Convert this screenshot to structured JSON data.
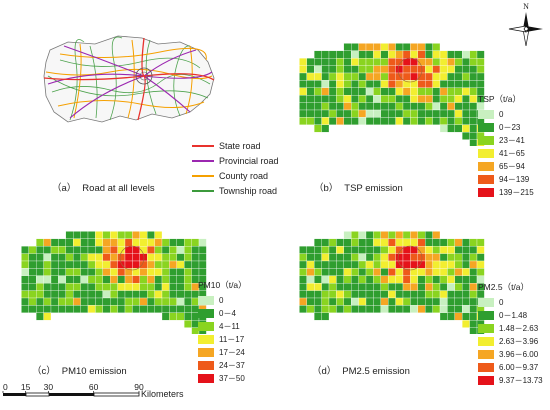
{
  "north_label": "N",
  "road_panel": {
    "caption_label": "（a）",
    "caption_text": "Road at all levels",
    "legend": [
      {
        "label": "State road",
        "color": "#e8322d"
      },
      {
        "label": "Provincial road",
        "color": "#9b27b0"
      },
      {
        "label": "County road",
        "color": "#f5a000"
      },
      {
        "label": "Township road",
        "color": "#3c9a3c"
      }
    ]
  },
  "emission_panels": [
    {
      "id": "tsp",
      "caption_label": "（b）",
      "caption_text": "TSP emission",
      "legend_title": "TSP（t/a）",
      "classes": [
        {
          "label": "0",
          "color": "#c8f0c0"
        },
        {
          "label": "0－23",
          "color": "#2f9e2f"
        },
        {
          "label": "23－41",
          "color": "#8ad420"
        },
        {
          "label": "41－65",
          "color": "#f2ee30"
        },
        {
          "label": "65－94",
          "color": "#f5a623"
        },
        {
          "label": "94－139",
          "color": "#ee5a1a"
        },
        {
          "label": "139－215",
          "color": "#e5121a"
        }
      ]
    },
    {
      "id": "pm10",
      "caption_label": "（c）",
      "caption_text": "PM10 emission",
      "legend_title": "PM10（t/a）",
      "classes": [
        {
          "label": "0",
          "color": "#c8f0c0"
        },
        {
          "label": "0－4",
          "color": "#2f9e2f"
        },
        {
          "label": "4－11",
          "color": "#8ad420"
        },
        {
          "label": "11－17",
          "color": "#f2ee30"
        },
        {
          "label": "17－24",
          "color": "#f5a623"
        },
        {
          "label": "24－37",
          "color": "#ee5a1a"
        },
        {
          "label": "37－50",
          "color": "#e5121a"
        }
      ]
    },
    {
      "id": "pm25",
      "caption_label": "（d）",
      "caption_text": "PM2.5 emission",
      "legend_title": "PM2.5（t/a）",
      "classes": [
        {
          "label": "0",
          "color": "#c8f0c0"
        },
        {
          "label": "0－1.48",
          "color": "#2f9e2f"
        },
        {
          "label": "1.48－2.63",
          "color": "#8ad420"
        },
        {
          "label": "2.63－3.96",
          "color": "#f2ee30"
        },
        {
          "label": "3.96－6.00",
          "color": "#f5a623"
        },
        {
          "label": "6.00－9.37",
          "color": "#ee5a1a"
        },
        {
          "label": "9.37－13.73",
          "color": "#e5121a"
        }
      ]
    }
  ],
  "scale_bar": {
    "ticks": [
      "0",
      "15",
      "30",
      "60",
      "90"
    ],
    "tick_values": [
      0,
      15,
      30,
      60,
      90
    ],
    "unit_label": "Kilometers"
  }
}
